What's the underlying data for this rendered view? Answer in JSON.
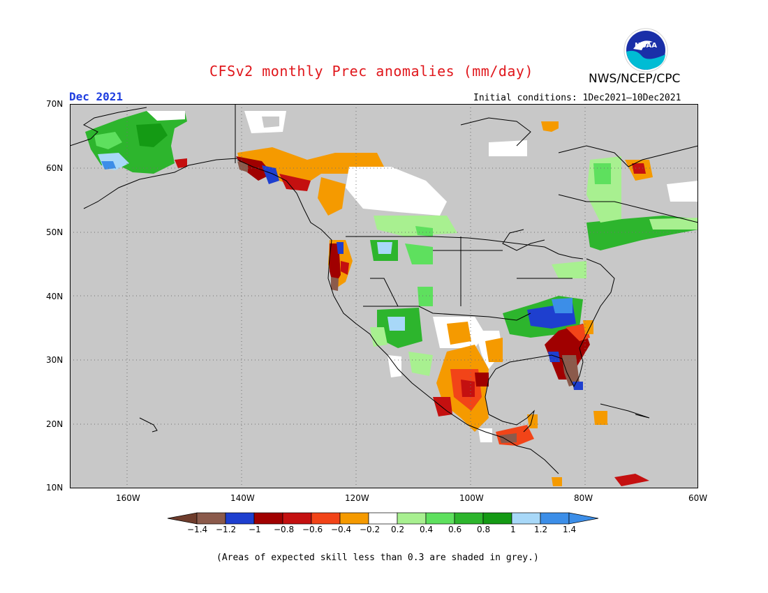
{
  "title": "CFSv2 monthly Prec anomalies (mm/day)",
  "agency": "NWS/NCEP/CPC",
  "logo_text": "NOAA",
  "month": "Dec 2021",
  "initial_conditions": "Initial conditions: 1Dec2021–10Dec2021",
  "footnote": "(Areas of expected skill less than 0.3 are shaded in grey.)",
  "lat_labels": [
    "70N",
    "60N",
    "50N",
    "40N",
    "30N",
    "20N",
    "10N"
  ],
  "lon_labels": [
    "160W",
    "140W",
    "120W",
    "100W",
    "80W",
    "60W"
  ],
  "colorbar": {
    "labels": [
      "−1.4",
      "−1.2",
      "−1",
      "−0.8",
      "−0.6",
      "−0.4",
      "−0.2",
      "0.2",
      "0.4",
      "0.6",
      "0.8",
      "1",
      "1.2",
      "1.4"
    ],
    "colors": [
      "#8b5a4b",
      "#1e3fcf",
      "#a00000",
      "#c41010",
      "#f24418",
      "#f59a00",
      "#ffffff",
      "#a8f090",
      "#5ee05e",
      "#2db52d",
      "#149a14",
      "#a8d8f8",
      "#3c8ee8"
    ],
    "low_extreme_color": "#6e3c2c",
    "high_extreme_color": "#3c8ee8"
  },
  "colors": {
    "background_skill_mask": "#c8c8c8",
    "title": "#e0161b",
    "month": "#1f3ee0"
  }
}
